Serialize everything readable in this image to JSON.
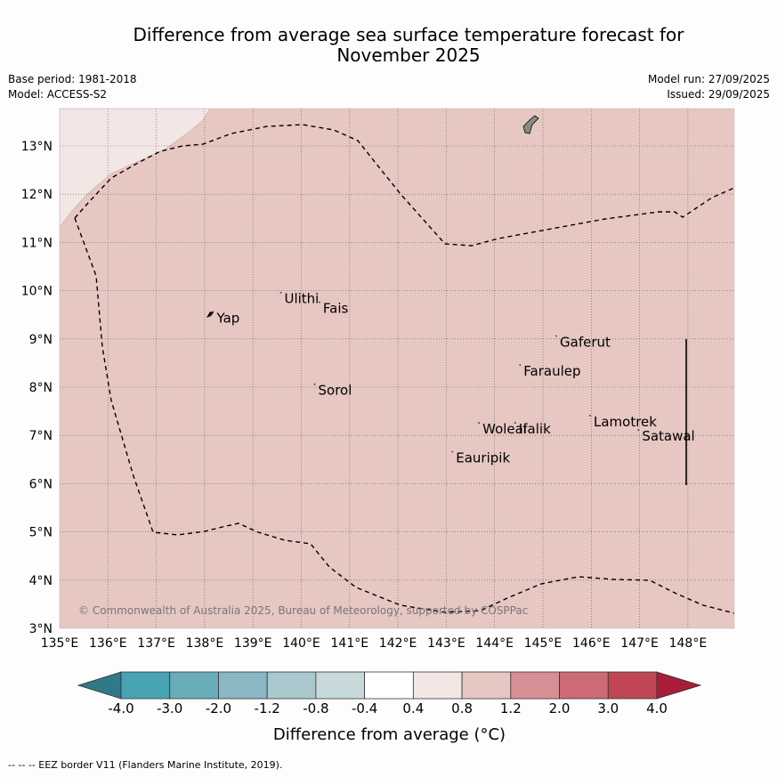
{
  "title": {
    "line1": "Difference from average sea surface temperature forecast for",
    "line2": "November 2025"
  },
  "meta": {
    "base_period": "Base period: 1981-2018",
    "model": "Model: ACCESS-S2",
    "model_run": "Model run: 27/09/2025",
    "issued": "Issued: 29/09/2025"
  },
  "axes": {
    "lon_labels": [
      "135°E",
      "136°E",
      "137°E",
      "138°E",
      "139°E",
      "140°E",
      "141°E",
      "142°E",
      "143°E",
      "144°E",
      "145°E",
      "146°E",
      "147°E",
      "148°E"
    ],
    "lat_labels": [
      "3°N",
      "4°N",
      "5°N",
      "6°N",
      "7°N",
      "8°N",
      "9°N",
      "10°N",
      "11°N",
      "12°N",
      "13°N"
    ]
  },
  "places": [
    {
      "name": "Yap",
      "lon": 138.25,
      "lat": 9.45
    },
    {
      "name": "Ulithi",
      "lon": 139.65,
      "lat": 9.85
    },
    {
      "name": "Fais",
      "lon": 140.45,
      "lat": 9.65
    },
    {
      "name": "Gaferut",
      "lon": 145.35,
      "lat": 8.95
    },
    {
      "name": "Faraulep",
      "lon": 144.6,
      "lat": 8.35
    },
    {
      "name": "Sorol",
      "lon": 140.35,
      "lat": 7.95
    },
    {
      "name": "Woleai",
      "lon": 143.75,
      "lat": 7.15
    },
    {
      "name": "Ifalik",
      "lon": 144.5,
      "lat": 7.15
    },
    {
      "name": "Lamotrek",
      "lon": 146.05,
      "lat": 7.3
    },
    {
      "name": "Satawal",
      "lon": 147.05,
      "lat": 7.0
    },
    {
      "name": "Eauripik",
      "lon": 143.2,
      "lat": 6.55
    }
  ],
  "copyright": "© Commonwealth of Australia 2025, Bureau of Meteorology, supported by COSPPac",
  "colorbar": {
    "ticks": [
      "-4.0",
      "-3.0",
      "-2.0",
      "-1.2",
      "-0.8",
      "-0.4",
      "0.4",
      "0.8",
      "1.2",
      "2.0",
      "3.0",
      "4.0"
    ],
    "colors": [
      "#2f7a86",
      "#48a3b3",
      "#69adbb",
      "#89b7c3",
      "#a9c8ce",
      "#c8d9dc",
      "#ffffff",
      "#f3e7e5",
      "#e7c7c2",
      "#d78f96",
      "#cc6b75",
      "#c04555",
      "#a81d3a"
    ],
    "label": "Difference from average (°C)"
  },
  "footnote": "--  --  -- EEZ border V11 (Flanders Marine Institute, 2019).",
  "map_data": {
    "main_fill": "#e7c7c2",
    "nw_fill": "#f3e7e5",
    "dominant_anomaly_range": "0.8 to 1.2",
    "nw_anomaly_range": "0.4 to 0.8"
  }
}
